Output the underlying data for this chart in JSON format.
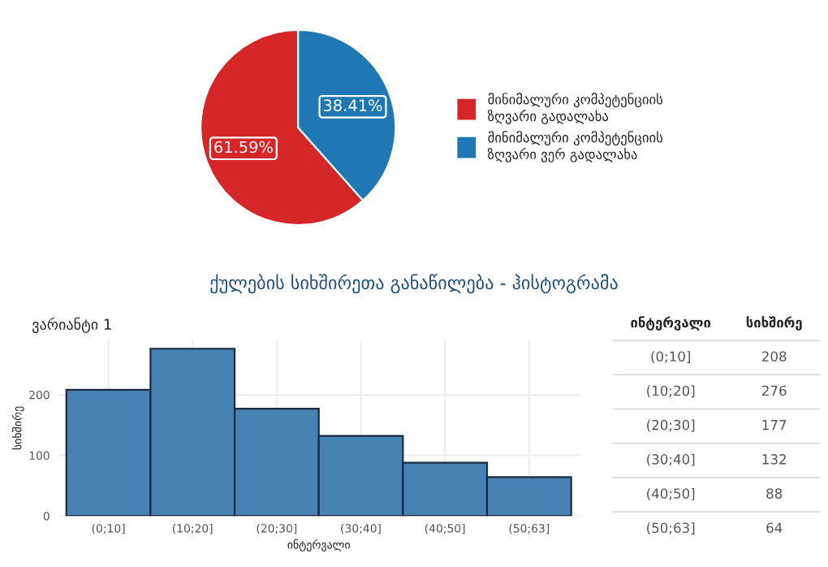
{
  "chart_data": [
    {
      "type": "pie",
      "categories": [
        "მინიმალური კომპეტენციის ზღვარი გადალახა",
        "მინიმალური კომპეტენციის ზღვარი ვერ გადალახა"
      ],
      "values": [
        61.59,
        38.41
      ],
      "colors": [
        "#d62728",
        "#1f77b4"
      ],
      "value_labels": [
        "61.59%",
        "38.41%"
      ],
      "legend": "right"
    },
    {
      "type": "bar",
      "title": "ქულების სიხშირეთა განაწილება - ჰისტოგრამა",
      "subtitle": "ვარიანტი 1",
      "xlabel": "ინტერვალი",
      "ylabel": "სიხშირე",
      "categories": [
        "(0;10]",
        "(10;20]",
        "(20;30]",
        "(30;40]",
        "(40;50]",
        "(50;63]"
      ],
      "values": [
        208,
        276,
        177,
        132,
        88,
        64
      ],
      "color": "#4682b4",
      "ylim": [
        0,
        290
      ],
      "yticks": [
        0,
        100,
        200
      ],
      "grid": true
    },
    {
      "type": "other",
      "data_labels": true,
      "annotations": [
        "ინტერვალი",
        "სიხშირე"
      ],
      "categories": [
        "(0;10]",
        "(10;20]",
        "(20;30]",
        "(30;40]",
        "(40;50]",
        "(50;63]"
      ],
      "values": [
        208,
        276,
        177,
        132,
        88,
        64
      ]
    }
  ]
}
